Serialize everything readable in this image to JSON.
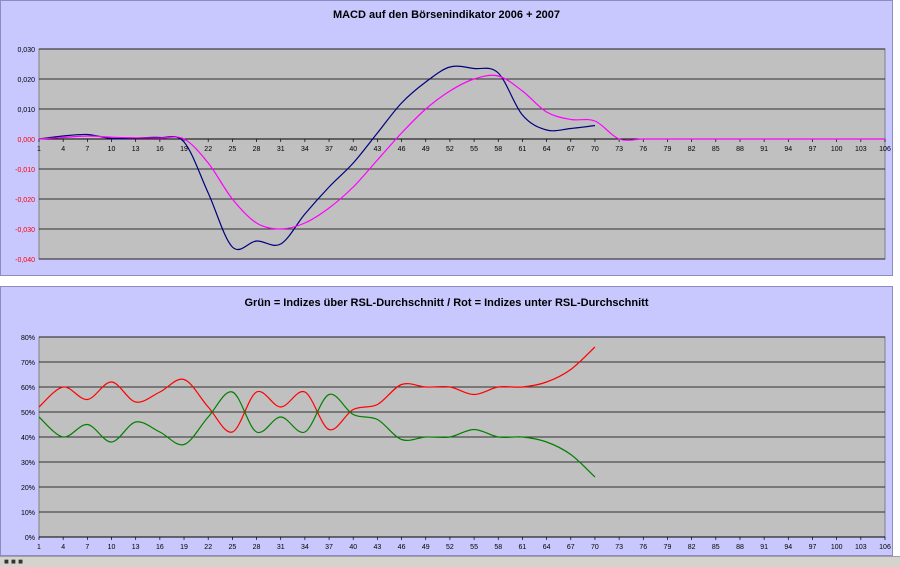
{
  "chart_data": [
    {
      "type": "line",
      "title": "MACD auf den Börsenindikator 2006 + 2007",
      "x": [
        1,
        4,
        7,
        10,
        13,
        16,
        19,
        22,
        25,
        28,
        31,
        34,
        37,
        40,
        43,
        46,
        49,
        52,
        55,
        58,
        61,
        64,
        67,
        70,
        73,
        76,
        79,
        82,
        85,
        88,
        91,
        94,
        97,
        100,
        103,
        106
      ],
      "x_tick_labels": [
        "1",
        "4",
        "7",
        "10",
        "13",
        "16",
        "19",
        "22",
        "25",
        "28",
        "31",
        "34",
        "37",
        "40",
        "43",
        "46",
        "49",
        "52",
        "55",
        "58",
        "61",
        "64",
        "67",
        "70",
        "73",
        "76",
        "79",
        "82",
        "85",
        "88",
        "91",
        "94",
        "97",
        "100",
        "103",
        "106"
      ],
      "y_tick_labels": [
        "0,030",
        "0,020",
        "0,010",
        "0,000",
        "-0,010",
        "-0,020",
        "-0,030",
        "-0,040"
      ],
      "ylim": [
        -0.04,
        0.03
      ],
      "grid": true,
      "series": [
        {
          "color": "#000080",
          "values": [
            0.0,
            0.001,
            0.0015,
            0.0002,
            0.0003,
            0.0005,
            -0.001,
            -0.018,
            -0.036,
            -0.034,
            -0.035,
            -0.025,
            -0.016,
            -0.008,
            0.002,
            0.012,
            0.019,
            0.024,
            0.0235,
            0.022,
            0.008,
            0.003,
            0.0035,
            0.0045,
            null,
            null,
            null,
            null,
            null,
            null,
            null,
            null,
            null,
            null,
            null,
            null
          ]
        },
        {
          "color": "#ff00ff",
          "values": [
            0.0,
            0.0005,
            0.001,
            0.0006,
            0.0004,
            0.0003,
            0.0,
            -0.008,
            -0.02,
            -0.028,
            -0.03,
            -0.028,
            -0.023,
            -0.016,
            -0.007,
            0.002,
            0.01,
            0.016,
            0.02,
            0.021,
            0.016,
            0.009,
            0.0065,
            0.006,
            0.0,
            0.0,
            0.0,
            0.0,
            0.0,
            0.0,
            0.0,
            0.0,
            0.0,
            0.0,
            0.0,
            0.0
          ]
        }
      ]
    },
    {
      "type": "line",
      "title": "Grün = Indizes über RSL-Durchschnitt / Rot = Indizes unter RSL-Durchschnitt",
      "x": [
        1,
        4,
        7,
        10,
        13,
        16,
        19,
        22,
        25,
        28,
        31,
        34,
        37,
        40,
        43,
        46,
        49,
        52,
        55,
        58,
        61,
        64,
        67,
        70,
        73,
        76,
        79,
        82,
        85,
        88,
        91,
        94,
        97,
        100,
        103,
        106
      ],
      "x_tick_labels": [
        "1",
        "4",
        "7",
        "10",
        "13",
        "16",
        "19",
        "22",
        "25",
        "28",
        "31",
        "34",
        "37",
        "40",
        "43",
        "46",
        "49",
        "52",
        "55",
        "58",
        "61",
        "64",
        "67",
        "70",
        "73",
        "76",
        "79",
        "82",
        "85",
        "88",
        "91",
        "94",
        "97",
        "100",
        "103",
        "106"
      ],
      "y_tick_labels": [
        "80%",
        "70%",
        "60%",
        "50%",
        "40%",
        "30%",
        "20%",
        "10%",
        "0%"
      ],
      "ylim": [
        0,
        80
      ],
      "grid": true,
      "series": [
        {
          "color": "#ff0000",
          "values": [
            52,
            60,
            55,
            62,
            54,
            58,
            63,
            52,
            42,
            58,
            52,
            58,
            43,
            51,
            53,
            61,
            60,
            60,
            57,
            60,
            60,
            62,
            67,
            76,
            null,
            null,
            null,
            null,
            null,
            null,
            null,
            null,
            null,
            null,
            null,
            null
          ]
        },
        {
          "color": "#008000",
          "values": [
            48,
            40,
            45,
            38,
            46,
            42,
            37,
            48,
            58,
            42,
            48,
            42,
            57,
            49,
            47,
            39,
            40,
            40,
            43,
            40,
            40,
            38,
            33,
            24,
            null,
            null,
            null,
            null,
            null,
            null,
            null,
            null,
            null,
            null,
            null,
            null
          ]
        }
      ]
    }
  ],
  "bottom_strip": {
    "left_label": "■ ■ ■"
  }
}
